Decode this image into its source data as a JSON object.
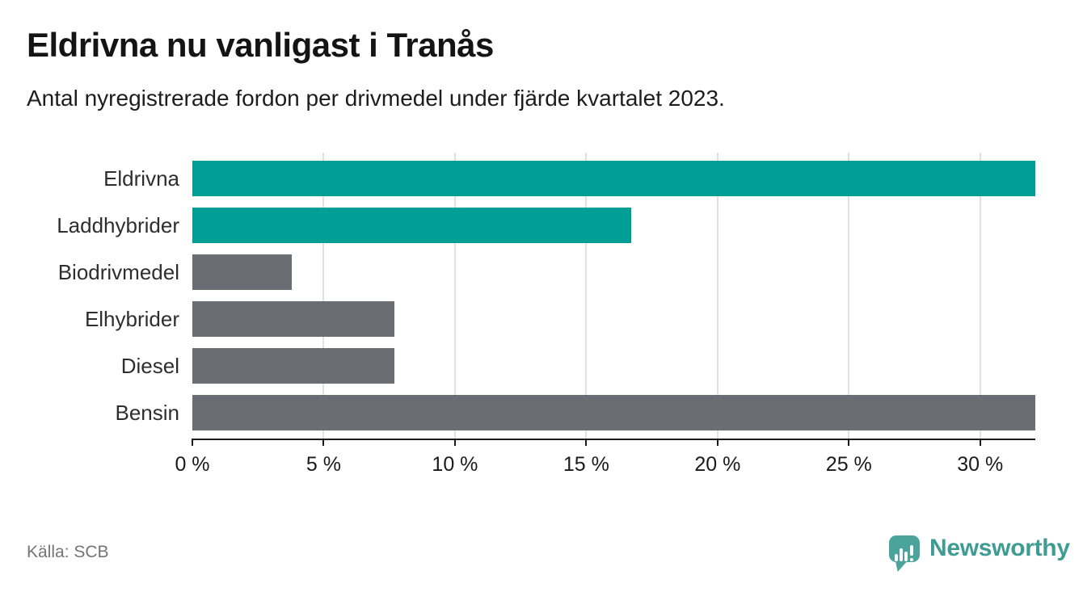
{
  "title": "Eldrivna nu vanligast i Tranås",
  "subtitle": "Antal nyregistrerade fordon per drivmedel under fjärde kvartalet 2023.",
  "source": "Källa: SCB",
  "branding": {
    "name": "Newsworthy",
    "icon": "bar-chart-speech-bubble-icon",
    "text_color": "#3E9C92",
    "icon_color": "#4BA49B"
  },
  "colors": {
    "highlight_bar": "#009E94",
    "default_bar": "#6C6C74",
    "gridline": "#E0E0E0",
    "axis": "#1A1A1A",
    "tick_mark": "#1A1A1A"
  },
  "chart_data": {
    "type": "bar",
    "orientation": "horizontal",
    "title": "Eldrivna nu vanligast i Tranås",
    "subtitle": "Antal nyregistrerade fordon per drivmedel under fjärde kvartalet 2023.",
    "unit": "%",
    "categories": [
      "Eldrivna",
      "Laddhybrider",
      "Biodrivmedel",
      "Elhybrider",
      "Diesel",
      "Bensin"
    ],
    "values": [
      32.1,
      16.7,
      3.8,
      7.7,
      7.7,
      32.1
    ],
    "bar_colors": [
      "#009E94",
      "#009E94",
      "#6C6C74",
      "#6C6C74",
      "#6C6C74",
      "#6C6C74"
    ],
    "highlighted_categories": [
      "Eldrivna",
      "Laddhybrider"
    ],
    "x_tick_values": [
      0,
      5,
      10,
      15,
      20,
      25,
      30
    ],
    "x_ticks": [
      "0 %",
      "5 %",
      "10 %",
      "15 %",
      "20 %",
      "25 %",
      "30 %"
    ],
    "xlim": [
      0,
      32.1
    ],
    "grid": "vertical",
    "legend": "none"
  }
}
